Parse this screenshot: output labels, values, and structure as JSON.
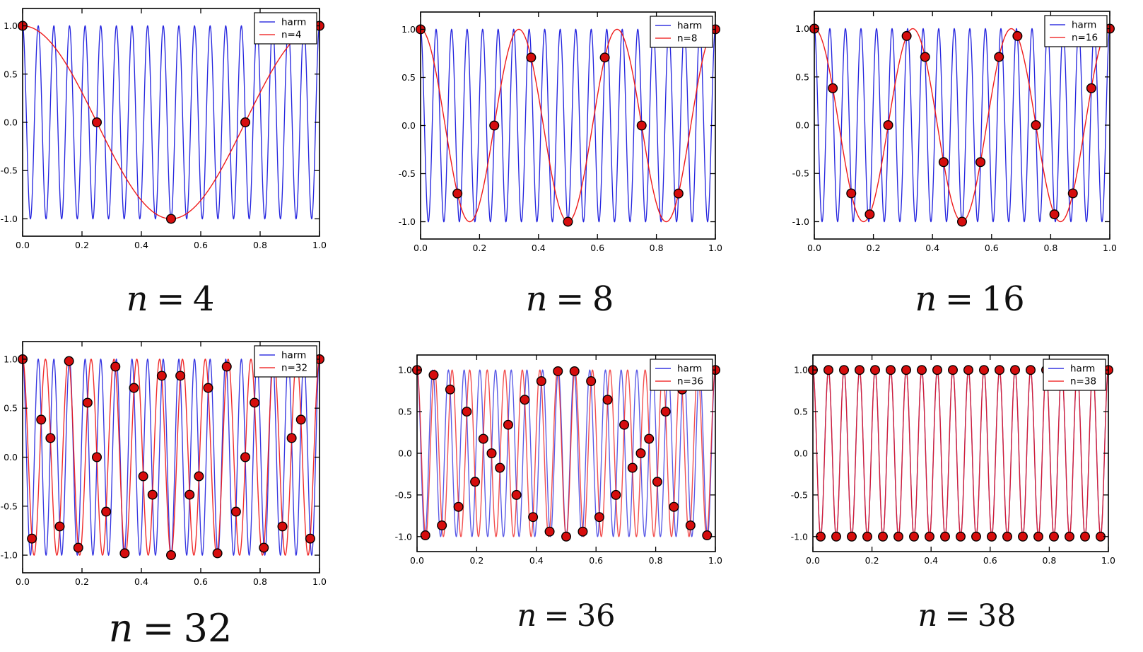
{
  "figure": {
    "background": "#ffffff",
    "description": "Aliasing demo: harmonic with 19 cycles on [0,1] sampled with n points and reconstructed alias cosine"
  },
  "chart_data": {
    "type": "line",
    "title": "",
    "xlabel": "",
    "ylabel": "",
    "grid": false,
    "legend_position": "upper right",
    "xlim": [
      0,
      1
    ],
    "ylim": [
      -1.18,
      1.18
    ],
    "x_ticks": [
      "0.0",
      "0.2",
      "0.4",
      "0.6",
      "0.8",
      "1.0"
    ],
    "x_tick_values": [
      0,
      0.2,
      0.4,
      0.6,
      0.8,
      1.0
    ],
    "y_ticks": [
      "-1.0",
      "-0.5",
      "0.0",
      "0.5",
      "1.0"
    ],
    "y_tick_values": [
      -1,
      -0.5,
      0,
      0.5,
      1
    ],
    "harmonic": {
      "label": "harm",
      "frequency_cycles": 19,
      "amplitude": 1,
      "color": "#1313dc"
    },
    "alias_color": "#ee1414",
    "marker": {
      "fill": "#d60d0d",
      "edge": "#000000"
    },
    "charts": [
      {
        "n": 4,
        "alias_frequency": 1,
        "legend": [
          "harm",
          "n=4"
        ],
        "caption_var": "n",
        "caption_eq": "=",
        "caption_value": "4",
        "samples_rule": "t_k = k/n, y_k = cos(2*pi*19*t_k)",
        "samples_y": [
          1,
          0,
          -1,
          0,
          1
        ]
      },
      {
        "n": 8,
        "alias_frequency": 3,
        "legend": [
          "harm",
          "n=8"
        ],
        "caption_var": "n",
        "caption_eq": "=",
        "caption_value": "8",
        "samples_rule": "t_k = k/n, y_k = cos(2*pi*19*t_k)",
        "samples_y": [
          1,
          -0.707,
          0,
          0.707,
          -1,
          0.707,
          0,
          -0.707,
          1
        ]
      },
      {
        "n": 16,
        "alias_frequency": 3,
        "legend": [
          "harm",
          "n=16"
        ],
        "caption_var": "n",
        "caption_eq": "=",
        "caption_value": "16",
        "samples_rule": "t_k = k/n, y_k = cos(2*pi*19*t_k)",
        "samples_y": [
          1,
          0.383,
          -0.707,
          -0.924,
          0,
          0.924,
          0.707,
          -0.383,
          -1,
          -0.383,
          0.707,
          0.924,
          0,
          -0.924,
          -0.707,
          0.383,
          1
        ]
      },
      {
        "n": 32,
        "alias_frequency": 13,
        "legend": [
          "harm",
          "n=32"
        ],
        "caption_var": "n",
        "caption_eq": "=",
        "caption_value": "32",
        "samples_rule": "t_k = k/n, y_k = cos(2*pi*19*t_k)",
        "samples_y": [
          1,
          -0.831,
          0.383,
          0.195,
          -0.707,
          0.981,
          -0.924,
          0.556,
          0,
          -0.556,
          0.924,
          -0.981,
          0.707,
          -0.195,
          -0.383,
          0.831,
          -1,
          0.831,
          -0.383,
          -0.195,
          0.707,
          -0.981,
          0.924,
          -0.556,
          0,
          0.556,
          -0.924,
          0.981,
          -0.707,
          0.195,
          0.383,
          -0.831,
          1
        ]
      },
      {
        "n": 36,
        "alias_frequency": 17,
        "legend": [
          "harm",
          "n=36"
        ],
        "caption_var": "n",
        "caption_eq": "=",
        "caption_value": "36",
        "samples_rule": "t_k = k/n, y_k = cos(2*pi*19*t_k)",
        "samples_y": [
          1,
          -0.985,
          0.94,
          -0.866,
          0.766,
          -0.643,
          0.5,
          -0.342,
          0.174,
          0,
          -0.174,
          0.342,
          -0.5,
          0.643,
          -0.766,
          0.866,
          -0.94,
          0.985,
          -1,
          0.985,
          -0.94,
          0.866,
          -0.766,
          0.643,
          -0.5,
          0.342,
          -0.174,
          0,
          0.174,
          -0.342,
          0.5,
          -0.643,
          0.766,
          -0.866,
          0.94,
          -0.985,
          1
        ]
      },
      {
        "n": 38,
        "alias_frequency": 19,
        "legend": [
          "harm",
          "n=38"
        ],
        "caption_var": "n",
        "caption_eq": "=",
        "caption_value": "38",
        "samples_rule": "t_k = k/n, y_k = cos(2*pi*19*t_k)",
        "samples_y": [
          1,
          -1,
          1,
          -1,
          1,
          -1,
          1,
          -1,
          1,
          -1,
          1,
          -1,
          1,
          -1,
          1,
          -1,
          1,
          -1,
          1,
          -1,
          1,
          -1,
          1,
          -1,
          1,
          -1,
          1,
          -1,
          1,
          -1,
          1,
          -1,
          1,
          -1,
          1,
          -1,
          1,
          -1,
          1
        ]
      }
    ]
  }
}
